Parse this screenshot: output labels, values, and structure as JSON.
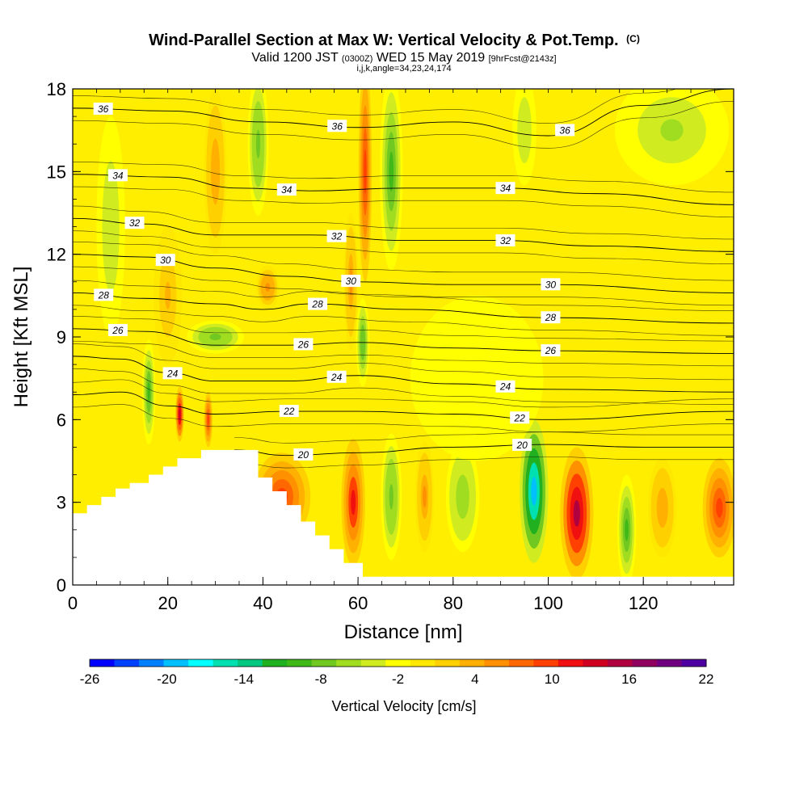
{
  "title": {
    "main": "Wind-Parallel Section at Max W: Vertical Velocity & Pot.Temp.",
    "main_suffix": "(C)",
    "valid_prefix": "Valid 1200 JST",
    "valid_utc": "(0300Z)",
    "valid_date": "WED 15 May 2019",
    "forecast": "[9hrFcst@2143z]",
    "indices": "i,j,k,angle=34,23,24,174"
  },
  "chart_data": {
    "type": "heatmap",
    "xlabel": "Distance [nm]",
    "ylabel": "Height [Kft MSL]",
    "xlim": [
      0,
      139
    ],
    "ylim": [
      0,
      18
    ],
    "x_ticks": [
      0,
      20,
      40,
      60,
      80,
      100,
      120
    ],
    "y_ticks": [
      0,
      3,
      6,
      9,
      12,
      15,
      18
    ],
    "grid": false,
    "colorbar": {
      "label": "Vertical Velocity [cm/s]",
      "placement": "bottom",
      "tick_labels": [
        "-26",
        "-20",
        "-14",
        "-8",
        "-2",
        "4",
        "10",
        "16",
        "22"
      ],
      "colors": [
        "#0000ff",
        "#0040ff",
        "#0080ff",
        "#00c0ff",
        "#00ffff",
        "#00e0b0",
        "#00c880",
        "#20b020",
        "#40b818",
        "#70c820",
        "#a0dc20",
        "#d0ec20",
        "#ffff00",
        "#ffe800",
        "#ffd000",
        "#ffb000",
        "#ff9000",
        "#ff6800",
        "#ff4000",
        "#f01010",
        "#d00020",
        "#b00040",
        "#900060",
        "#700080",
        "#5000a0"
      ]
    },
    "terrain_profile": [
      [
        0,
        2.6
      ],
      [
        3,
        2.9
      ],
      [
        6,
        3.2
      ],
      [
        9,
        3.5
      ],
      [
        12,
        3.7
      ],
      [
        16,
        4.0
      ],
      [
        19,
        4.3
      ],
      [
        22,
        4.6
      ],
      [
        27,
        4.9
      ],
      [
        39,
        4.9
      ],
      [
        39,
        3.9
      ],
      [
        42,
        3.4
      ],
      [
        45,
        2.9
      ],
      [
        48,
        2.3
      ],
      [
        51,
        1.8
      ],
      [
        54,
        1.3
      ],
      [
        57,
        0.8
      ],
      [
        61,
        0.3
      ],
      [
        139,
        0.3
      ]
    ],
    "w_cells": [
      {
        "x": 16,
        "y": 7.0,
        "rx": 1.4,
        "ry": 1.9,
        "value": -10
      },
      {
        "x": 22.5,
        "y": 6.2,
        "rx": 0.9,
        "ry": 1.0,
        "value": 14
      },
      {
        "x": 28.5,
        "y": 6.0,
        "rx": 0.9,
        "ry": 1.0,
        "value": 10
      },
      {
        "x": 44,
        "y": 3.2,
        "rx": 6,
        "ry": 1.6,
        "value": 9
      },
      {
        "x": 59,
        "y": 3.0,
        "rx": 2.5,
        "ry": 2.3,
        "value": 12
      },
      {
        "x": 67,
        "y": 3.2,
        "rx": 2.2,
        "ry": 2.3,
        "value": -8
      },
      {
        "x": 74,
        "y": 3.2,
        "rx": 2.0,
        "ry": 2.0,
        "value": 5
      },
      {
        "x": 82,
        "y": 3.2,
        "rx": 3.5,
        "ry": 2.0,
        "value": -7
      },
      {
        "x": 97,
        "y": 3.4,
        "rx": 3.0,
        "ry": 2.6,
        "value": -20
      },
      {
        "x": 106,
        "y": 2.6,
        "rx": 3.5,
        "ry": 2.4,
        "value": 16
      },
      {
        "x": 116.5,
        "y": 2.0,
        "rx": 2.0,
        "ry": 2.0,
        "value": -10
      },
      {
        "x": 124,
        "y": 2.8,
        "rx": 3.0,
        "ry": 1.8,
        "value": 4
      },
      {
        "x": 136,
        "y": 2.8,
        "rx": 3.5,
        "ry": 1.8,
        "value": 10
      },
      {
        "x": 61.5,
        "y": 15.0,
        "rx": 1.4,
        "ry": 4.0,
        "value": 9
      },
      {
        "x": 67,
        "y": 15.0,
        "rx": 2.4,
        "ry": 3.6,
        "value": -11
      },
      {
        "x": 58.5,
        "y": 11.0,
        "rx": 1.5,
        "ry": 2.5,
        "value": 5
      },
      {
        "x": 61,
        "y": 8.8,
        "rx": 1.4,
        "ry": 1.6,
        "value": -9
      },
      {
        "x": 39,
        "y": 16.0,
        "rx": 2.2,
        "ry": 2.6,
        "value": -8
      },
      {
        "x": 30,
        "y": 9.0,
        "rx": 6,
        "ry": 0.6,
        "value": -8
      },
      {
        "x": 41,
        "y": 10.8,
        "rx": 2.5,
        "ry": 0.8,
        "value": 6
      },
      {
        "x": 20,
        "y": 10.5,
        "rx": 3,
        "ry": 2.5,
        "value": 3
      },
      {
        "x": 30,
        "y": 15.0,
        "rx": 2.4,
        "ry": 3.0,
        "value": 4
      },
      {
        "x": 126,
        "y": 16.5,
        "rx": 12,
        "ry": 2.0,
        "value": -6
      },
      {
        "x": 95,
        "y": 16.5,
        "rx": 2.5,
        "ry": 2.0,
        "value": -5
      },
      {
        "x": 8,
        "y": 13.0,
        "rx": 3,
        "ry": 4,
        "value": -5
      },
      {
        "x": 85,
        "y": 7.5,
        "rx": 14,
        "ry": 3.0,
        "value": -2
      }
    ],
    "theta_contours": [
      {
        "label": "36",
        "points": [
          [
            0,
            17.3
          ],
          [
            20,
            17.2
          ],
          [
            40,
            16.8
          ],
          [
            60,
            16.6
          ],
          [
            80,
            16.8
          ],
          [
            100,
            16.3
          ],
          [
            120,
            17.4
          ],
          [
            139,
            18.0
          ]
        ],
        "label_x": [
          6.4,
          55.6,
          103.5
        ]
      },
      {
        "label": "34",
        "points": [
          [
            0,
            14.9
          ],
          [
            20,
            14.8
          ],
          [
            35,
            14.4
          ],
          [
            50,
            14.3
          ],
          [
            70,
            14.4
          ],
          [
            90,
            14.4
          ],
          [
            110,
            14.2
          ],
          [
            139,
            13.8
          ]
        ],
        "label_x": [
          9.5,
          45.0,
          91.0
        ]
      },
      {
        "label": "32",
        "points": [
          [
            0,
            13.3
          ],
          [
            15,
            13.1
          ],
          [
            30,
            12.7
          ],
          [
            50,
            12.7
          ],
          [
            70,
            12.5
          ],
          [
            90,
            12.5
          ],
          [
            110,
            12.3
          ],
          [
            139,
            12.1
          ]
        ],
        "label_x": [
          13.0,
          55.5,
          91.0
        ]
      },
      {
        "label": "30",
        "points": [
          [
            0,
            12.0
          ],
          [
            15,
            11.9
          ],
          [
            30,
            11.5
          ],
          [
            45,
            11.2
          ],
          [
            60,
            11.0
          ],
          [
            80,
            10.9
          ],
          [
            100,
            10.9
          ],
          [
            139,
            10.6
          ]
        ],
        "label_x": [
          19.5,
          58.5,
          100.5
        ]
      },
      {
        "label": "28",
        "points": [
          [
            0,
            10.6
          ],
          [
            15,
            10.4
          ],
          [
            30,
            10.2
          ],
          [
            40,
            10.0
          ],
          [
            50,
            10.2
          ],
          [
            70,
            10.0
          ],
          [
            100,
            9.7
          ],
          [
            139,
            9.5
          ]
        ],
        "label_x": [
          6.5,
          51.5,
          100.5
        ]
      },
      {
        "label": "26",
        "points": [
          [
            0,
            9.3
          ],
          [
            15,
            9.2
          ],
          [
            30,
            8.7
          ],
          [
            45,
            8.7
          ],
          [
            60,
            8.8
          ],
          [
            80,
            8.6
          ],
          [
            100,
            8.5
          ],
          [
            139,
            8.4
          ]
        ],
        "label_x": [
          9.5,
          48.5,
          100.5
        ]
      },
      {
        "label": "24",
        "points": [
          [
            0,
            8.3
          ],
          [
            10,
            8.2
          ],
          [
            20,
            7.7
          ],
          [
            30,
            7.4
          ],
          [
            45,
            7.4
          ],
          [
            60,
            7.6
          ],
          [
            80,
            7.3
          ],
          [
            100,
            7.1
          ],
          [
            139,
            7.0
          ]
        ],
        "label_x": [
          21.0,
          55.5,
          91.0
        ]
      },
      {
        "label": "22",
        "points": [
          [
            0,
            6.9
          ],
          [
            10,
            7.0
          ],
          [
            20,
            6.5
          ],
          [
            30,
            6.2
          ],
          [
            45,
            6.3
          ],
          [
            60,
            6.3
          ],
          [
            80,
            6.2
          ],
          [
            100,
            6.0
          ],
          [
            139,
            6.3
          ]
        ],
        "label_x": [
          45.5,
          94.0
        ]
      },
      {
        "label": "20",
        "points": [
          [
            34,
            4.9
          ],
          [
            45,
            4.7
          ],
          [
            60,
            4.8
          ],
          [
            80,
            5.0
          ],
          [
            100,
            5.1
          ],
          [
            120,
            5.0
          ],
          [
            139,
            5.0
          ]
        ],
        "label_x": [
          48.5,
          94.5
        ]
      }
    ]
  }
}
